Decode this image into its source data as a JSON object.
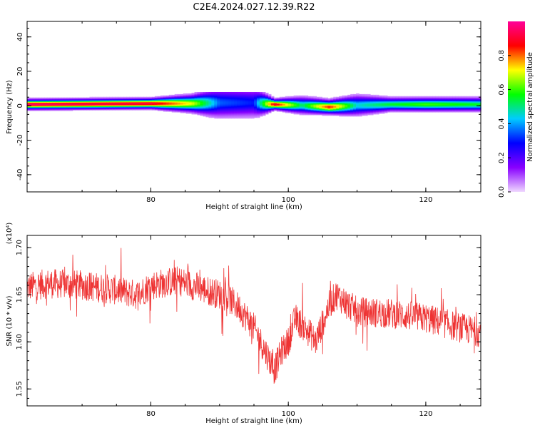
{
  "title": "C2E4.2024.027.12.39.R22",
  "colors": {
    "snr_line": "#ee3333",
    "axis": "#000000"
  },
  "chart_data": [
    {
      "type": "heatmap",
      "title": "C2E4.2024.027.12.39.R22",
      "xlabel": "Height of straight line (km)",
      "ylabel": "Frequency (Hz)",
      "xlim": [
        62,
        128
      ],
      "ylim": [
        -50,
        49
      ],
      "xticks": [
        "80",
        "100",
        "120"
      ],
      "yticks": [
        "40",
        "20",
        "0",
        "-20",
        "-40"
      ],
      "colorbar": {
        "label": "Normalized spectral amplitude",
        "range": [
          0,
          1
        ],
        "ticks": [
          "0.0",
          "0.2",
          "0.4",
          "0.6",
          "0.8"
        ],
        "colormap": [
          "#f0d8ff",
          "#8800ff",
          "#0000ff",
          "#00ccff",
          "#00ff00",
          "#ffff00",
          "#ff0000",
          "#ff0099"
        ]
      },
      "band": [
        {
          "x": 62,
          "f": 1.0,
          "amp": 0.95,
          "w": 1.5
        },
        {
          "x": 70,
          "f": 1.2,
          "amp": 0.93,
          "w": 1.5
        },
        {
          "x": 80,
          "f": 1.5,
          "amp": 0.92,
          "w": 1.5
        },
        {
          "x": 86,
          "f": 1.5,
          "amp": 0.7,
          "w": 2.5
        },
        {
          "x": 90,
          "f": 2.0,
          "amp": 0.35,
          "w": 4.5
        },
        {
          "x": 95,
          "f": 2.0,
          "amp": 0.3,
          "w": 4.5
        },
        {
          "x": 98,
          "f": 1.0,
          "amp": 0.9,
          "w": 1.5
        },
        {
          "x": 102,
          "f": 0.5,
          "amp": 0.5,
          "w": 2.5
        },
        {
          "x": 106,
          "f": -0.5,
          "amp": 0.85,
          "w": 2.0
        },
        {
          "x": 110,
          "f": 0.5,
          "amp": 0.45,
          "w": 3.0
        },
        {
          "x": 115,
          "f": 1.0,
          "amp": 0.55,
          "w": 2.0
        },
        {
          "x": 120,
          "f": 1.0,
          "amp": 0.6,
          "w": 2.0
        },
        {
          "x": 128,
          "f": 1.0,
          "amp": 0.55,
          "w": 2.0
        }
      ]
    },
    {
      "type": "line",
      "xlabel": "Height of straight line (km)",
      "ylabel": "SNR (10 * v/v)",
      "scale_label": "(x10⁴)",
      "xlim": [
        62,
        128
      ],
      "ylim": [
        1.532,
        1.713
      ],
      "xticks": [
        "80",
        "100",
        "120"
      ],
      "yticks": [
        "1.55",
        "1.60",
        "1.65",
        "1.70"
      ],
      "series": [
        {
          "trend": [
            [
              62,
              1.658
            ],
            [
              65,
              1.662
            ],
            [
              70,
              1.66
            ],
            [
              75,
              1.655
            ],
            [
              78,
              1.65
            ],
            [
              80,
              1.66
            ],
            [
              84,
              1.665
            ],
            [
              88,
              1.655
            ],
            [
              91,
              1.648
            ],
            [
              93,
              1.635
            ],
            [
              95,
              1.615
            ],
            [
              97,
              1.585
            ],
            [
              98,
              1.57
            ],
            [
              99,
              1.59
            ],
            [
              100,
              1.6
            ],
            [
              101,
              1.625
            ],
            [
              103,
              1.61
            ],
            [
              104,
              1.6
            ],
            [
              106,
              1.64
            ],
            [
              107,
              1.65
            ],
            [
              110,
              1.632
            ],
            [
              115,
              1.63
            ],
            [
              120,
              1.625
            ],
            [
              125,
              1.615
            ],
            [
              128,
              1.61
            ]
          ]
        }
      ]
    }
  ]
}
